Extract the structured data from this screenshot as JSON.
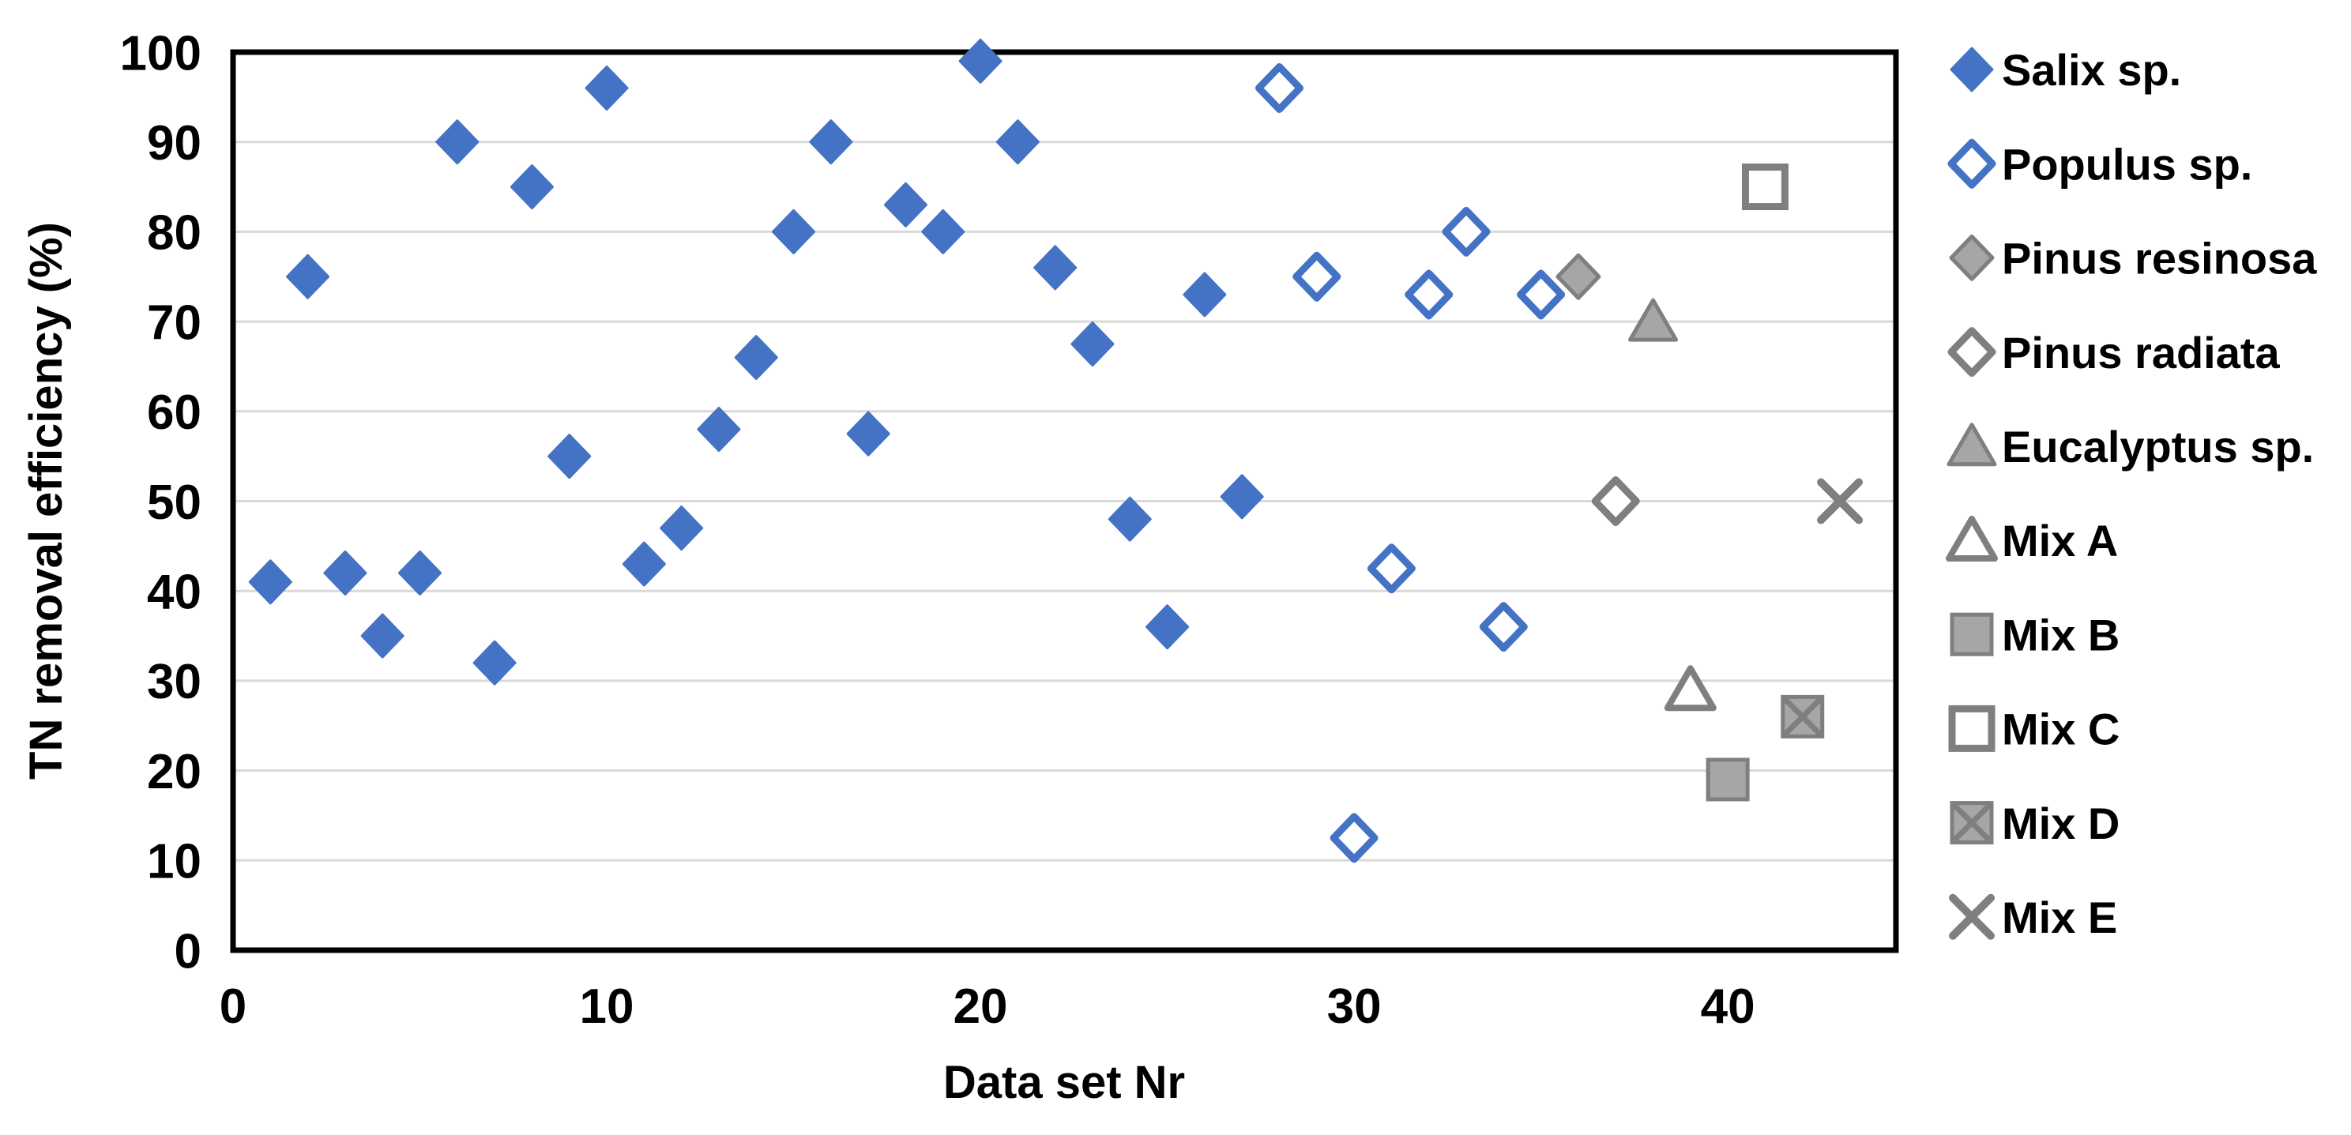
{
  "chart_data": {
    "type": "scatter",
    "title": "",
    "xlabel": "Data set Nr",
    "ylabel": "TN removal efficiency (%)",
    "xlim": [
      0,
      44.5
    ],
    "ylim": [
      0,
      100
    ],
    "x_ticks": [
      0,
      10,
      20,
      30,
      40
    ],
    "y_ticks": [
      0,
      10,
      20,
      30,
      40,
      50,
      60,
      70,
      80,
      90,
      100
    ],
    "grid": "horizontal-only",
    "legend_position": "right",
    "colors": {
      "blue": "#4472C4",
      "gray_fill": "#A6A6A6",
      "gray_stroke": "#7F7F7F",
      "gridline": "#D9D9D9",
      "axis": "#000000",
      "background": "#FFFFFF"
    },
    "series": [
      {
        "name": "Salix sp.",
        "shape": "diamond",
        "fill": "#4472C4",
        "stroke": "#4472C4",
        "stroke_width": 3,
        "points": [
          [
            1,
            41
          ],
          [
            2,
            75
          ],
          [
            3,
            42
          ],
          [
            4,
            35
          ],
          [
            5,
            42
          ],
          [
            6,
            90
          ],
          [
            7,
            32
          ],
          [
            8,
            85
          ],
          [
            9,
            55
          ],
          [
            10,
            96
          ],
          [
            11,
            43
          ],
          [
            12,
            47
          ],
          [
            13,
            58
          ],
          [
            14,
            66
          ],
          [
            15,
            80
          ],
          [
            16,
            90
          ],
          [
            17,
            57.5
          ],
          [
            18,
            83
          ],
          [
            19,
            80
          ],
          [
            20,
            99
          ],
          [
            21,
            90
          ],
          [
            22,
            76
          ],
          [
            23,
            67.5
          ],
          [
            24,
            48
          ],
          [
            25,
            36
          ],
          [
            26,
            73
          ],
          [
            27,
            50.5
          ]
        ]
      },
      {
        "name": "Populus sp.",
        "shape": "diamond",
        "fill": "#FFFFFF",
        "stroke": "#4472C4",
        "stroke_width": 9,
        "points": [
          [
            28,
            96
          ],
          [
            29,
            75
          ],
          [
            30,
            12.5
          ],
          [
            31,
            42.5
          ],
          [
            32,
            73
          ],
          [
            33,
            80
          ],
          [
            34,
            36
          ],
          [
            35,
            73
          ]
        ]
      },
      {
        "name": "Pinus resinosa",
        "shape": "diamond",
        "fill": "#A6A6A6",
        "stroke": "#7F7F7F",
        "stroke_width": 5,
        "points": [
          [
            36,
            75
          ]
        ]
      },
      {
        "name": "Pinus radiata",
        "shape": "diamond",
        "fill": "#FFFFFF",
        "stroke": "#7F7F7F",
        "stroke_width": 9,
        "points": [
          [
            37,
            50
          ]
        ]
      },
      {
        "name": "Eucalyptus sp.",
        "shape": "triangle",
        "fill": "#A6A6A6",
        "stroke": "#7F7F7F",
        "stroke_width": 5,
        "points": [
          [
            38,
            70
          ]
        ]
      },
      {
        "name": "Mix A",
        "shape": "triangle",
        "fill": "#FFFFFF",
        "stroke": "#7F7F7F",
        "stroke_width": 8,
        "points": [
          [
            39,
            29
          ]
        ]
      },
      {
        "name": "Mix B",
        "shape": "square",
        "fill": "#A6A6A6",
        "stroke": "#7F7F7F",
        "stroke_width": 5,
        "points": [
          [
            40,
            19
          ]
        ]
      },
      {
        "name": "Mix C",
        "shape": "square",
        "fill": "#FFFFFF",
        "stroke": "#7F7F7F",
        "stroke_width": 9,
        "points": [
          [
            41,
            85
          ]
        ]
      },
      {
        "name": "Mix D",
        "shape": "square-x",
        "fill": "#A6A6A6",
        "stroke": "#7F7F7F",
        "stroke_width": 7,
        "points": [
          [
            42,
            26
          ]
        ]
      },
      {
        "name": "Mix E",
        "shape": "x",
        "fill": "none",
        "stroke": "#7F7F7F",
        "stroke_width": 10,
        "points": [
          [
            43,
            50
          ]
        ]
      }
    ]
  }
}
